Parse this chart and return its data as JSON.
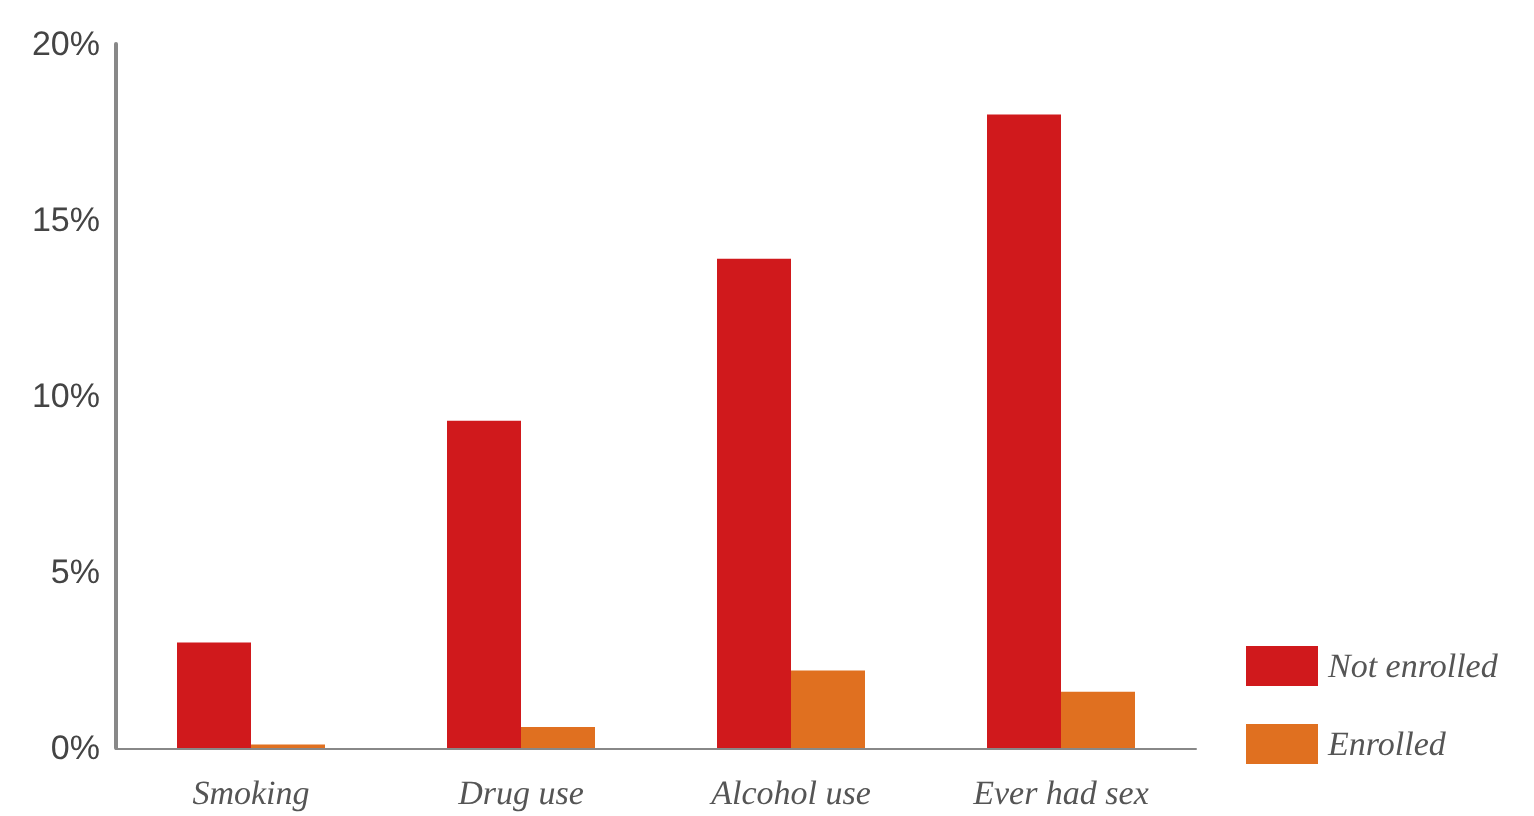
{
  "chart_data": {
    "type": "bar",
    "categories": [
      "Smoking",
      "Drug use",
      "Alcohol use",
      "Ever had sex"
    ],
    "series": [
      {
        "name": "Not enrolled",
        "color": "#d0191c",
        "values": [
          3.0,
          9.3,
          13.9,
          18.0
        ]
      },
      {
        "name": "Enrolled",
        "color": "#e07020",
        "values": [
          0.1,
          0.6,
          2.2,
          1.6
        ]
      }
    ],
    "ylim": [
      0,
      20
    ],
    "yticks": [
      {
        "value": 0,
        "label": "0%"
      },
      {
        "value": 5,
        "label": "5%"
      },
      {
        "value": 10,
        "label": "10%"
      },
      {
        "value": 15,
        "label": "15%"
      },
      {
        "value": 20,
        "label": "20%"
      }
    ],
    "grid": false,
    "legend": "bottom right"
  }
}
